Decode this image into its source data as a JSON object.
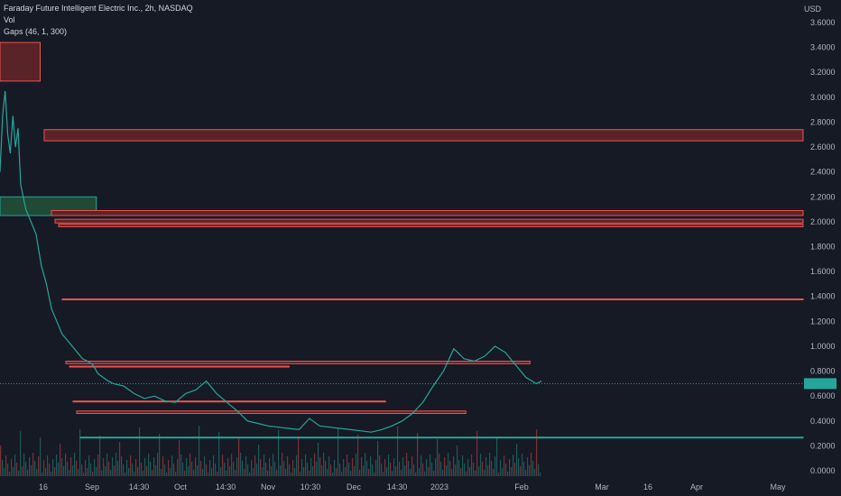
{
  "legend": {
    "symbol_line": "Faraday Future Intelligent Electric Inc., 2h, NASDAQ",
    "vol_label": "Vol",
    "indicator_label": "Gaps (46, 1, 300)"
  },
  "currency": "USD",
  "colors": {
    "background": "#161a25",
    "up": "#26a69a",
    "down": "#ef5350",
    "gap_down_fill": "#5a2328",
    "gap_up_fill": "#1f4a35",
    "axis_text": "#b2b5be"
  },
  "chart_data": {
    "type": "candlestick",
    "y_ticks": [
      "3.6000",
      "3.4000",
      "3.2000",
      "3.0000",
      "2.8000",
      "2.6000",
      "2.4000",
      "2.2000",
      "2.0000",
      "1.8000",
      "1.6000",
      "1.4000",
      "1.2000",
      "1.0000",
      "0.8000",
      "0.6000",
      "0.4000",
      "0.2000",
      "0.0000"
    ],
    "ylim": [
      0,
      3.7
    ],
    "x_ticks": [
      "16",
      "Sep",
      "14:30",
      "Oct",
      "14:30",
      "Nov",
      "10:30",
      "Dec",
      "14:30",
      "2023",
      "Feb",
      "Mar",
      "16",
      "Apr",
      "May"
    ],
    "price_path": [
      [
        0,
        2.4
      ],
      [
        0.5,
        2.85
      ],
      [
        1,
        3.05
      ],
      [
        1.5,
        2.7
      ],
      [
        2,
        2.55
      ],
      [
        2.5,
        2.85
      ],
      [
        3,
        2.6
      ],
      [
        3.5,
        2.75
      ],
      [
        4,
        2.3
      ],
      [
        5,
        2.1
      ],
      [
        6,
        2.0
      ],
      [
        7,
        1.9
      ],
      [
        8,
        1.65
      ],
      [
        9,
        1.5
      ],
      [
        10,
        1.3
      ],
      [
        11,
        1.2
      ],
      [
        12,
        1.1
      ],
      [
        13,
        1.05
      ],
      [
        14,
        1.0
      ],
      [
        15,
        0.95
      ],
      [
        16,
        0.9
      ],
      [
        17,
        0.88
      ],
      [
        18,
        0.85
      ],
      [
        19,
        0.78
      ],
      [
        20,
        0.75
      ],
      [
        21,
        0.72
      ],
      [
        22,
        0.7
      ],
      [
        24,
        0.68
      ],
      [
        26,
        0.62
      ],
      [
        28,
        0.58
      ],
      [
        30,
        0.6
      ],
      [
        32,
        0.56
      ],
      [
        34,
        0.55
      ],
      [
        36,
        0.62
      ],
      [
        38,
        0.65
      ],
      [
        40,
        0.72
      ],
      [
        42,
        0.62
      ],
      [
        44,
        0.55
      ],
      [
        46,
        0.48
      ],
      [
        48,
        0.4
      ],
      [
        50,
        0.38
      ],
      [
        52,
        0.36
      ],
      [
        54,
        0.35
      ],
      [
        56,
        0.34
      ],
      [
        58,
        0.33
      ],
      [
        60,
        0.42
      ],
      [
        62,
        0.36
      ],
      [
        64,
        0.35
      ],
      [
        66,
        0.34
      ],
      [
        68,
        0.33
      ],
      [
        70,
        0.32
      ],
      [
        72,
        0.31
      ],
      [
        74,
        0.33
      ],
      [
        76,
        0.36
      ],
      [
        78,
        0.4
      ],
      [
        80,
        0.46
      ],
      [
        82,
        0.55
      ],
      [
        84,
        0.68
      ],
      [
        86,
        0.8
      ],
      [
        88,
        0.98
      ],
      [
        90,
        0.9
      ],
      [
        92,
        0.88
      ],
      [
        94,
        0.92
      ],
      [
        96,
        1.0
      ],
      [
        98,
        0.95
      ],
      [
        100,
        0.85
      ],
      [
        102,
        0.75
      ],
      [
        104,
        0.7
      ],
      [
        105,
        0.72
      ]
    ],
    "last_price": 0.7,
    "gap_zones": [
      {
        "direction": "down",
        "top": 3.44,
        "bottom": 3.13,
        "x_end": 0.05
      },
      {
        "direction": "down",
        "top": 2.74,
        "bottom": 2.65,
        "x_end": 1
      },
      {
        "direction": "up",
        "top": 2.2,
        "bottom": 2.05,
        "x_end": 0.12
      },
      {
        "direction": "down",
        "top": 2.09,
        "bottom": 2.05,
        "x_end": 1
      },
      {
        "direction": "down",
        "top": 2.02,
        "bottom": 1.99,
        "x_end": 1
      },
      {
        "direction": "down",
        "top": 1.98,
        "bottom": 1.96,
        "x_end": 1
      },
      {
        "direction": "down",
        "top": 1.38,
        "bottom": 1.38,
        "x_end": 1
      },
      {
        "direction": "down",
        "top": 0.88,
        "bottom": 0.86,
        "x_end": 0.66
      },
      {
        "direction": "down",
        "top": 0.84,
        "bottom": 0.84,
        "x_end": 0.36
      },
      {
        "direction": "down",
        "top": 0.56,
        "bottom": 0.56,
        "x_end": 0.48
      },
      {
        "direction": "down",
        "top": 0.48,
        "bottom": 0.46,
        "x_end": 0.58
      },
      {
        "direction": "up",
        "top": 0.27,
        "bottom": 0.27,
        "x_end": 1
      }
    ]
  }
}
